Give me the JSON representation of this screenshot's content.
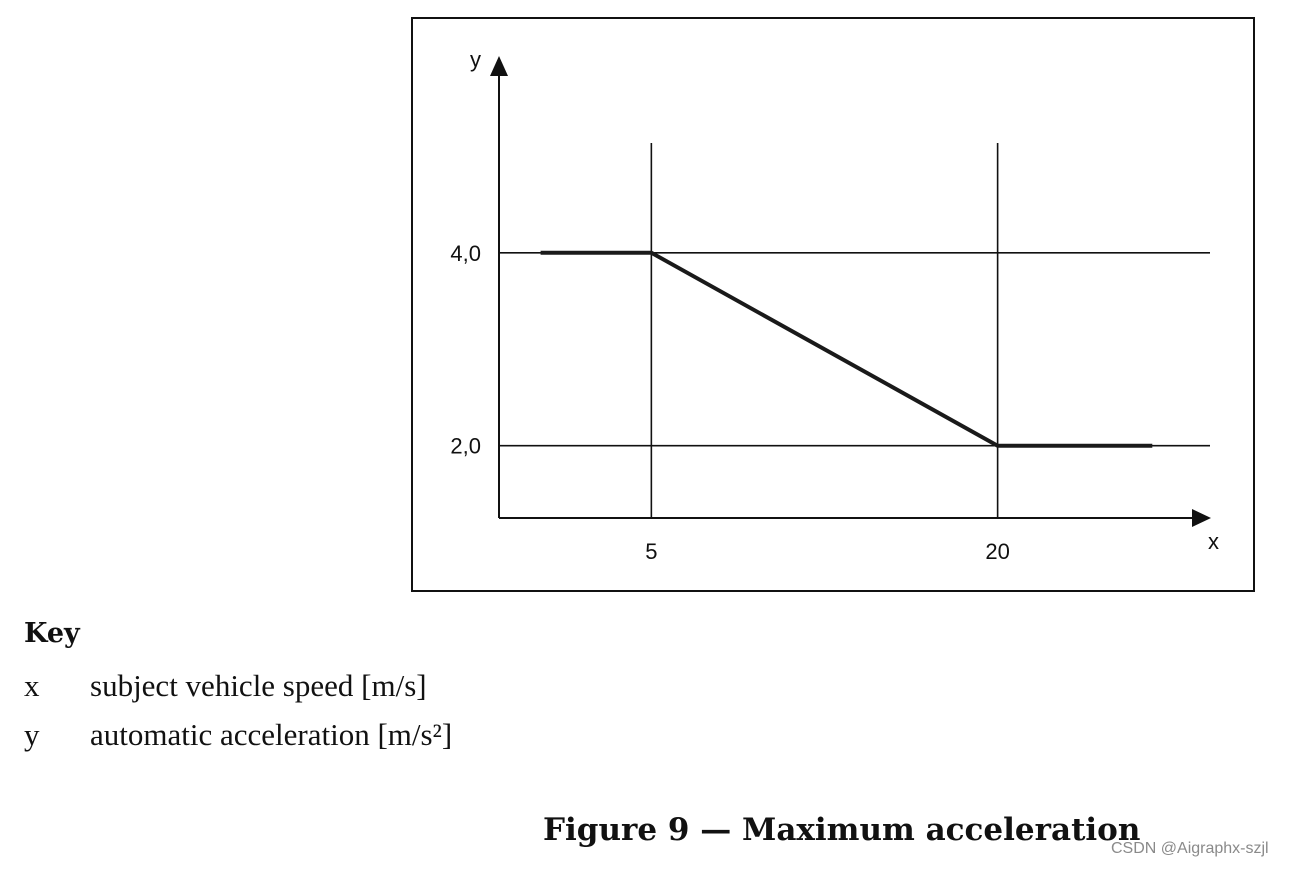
{
  "chart_data": {
    "type": "line",
    "title": "",
    "xlabel": "x",
    "ylabel": "y",
    "x_ticks": [
      {
        "value": 5,
        "label": "5"
      },
      {
        "value": 20,
        "label": "20"
      }
    ],
    "y_ticks": [
      {
        "value": 2.0,
        "label": "2,0"
      },
      {
        "value": 4.0,
        "label": "4,0"
      }
    ],
    "xlim": [
      -1.6,
      29.2
    ],
    "ylim": [
      1.25,
      6.0
    ],
    "grid": true,
    "series": [
      {
        "x": [
          0.2,
          5,
          20,
          26.7
        ],
        "y": [
          4.0,
          4.0,
          2.0,
          2.0
        ]
      }
    ]
  },
  "key": {
    "heading": "Key",
    "entries": [
      {
        "symbol": "x",
        "description": "subject vehicle speed [m/s]"
      },
      {
        "symbol": "y",
        "description": "automatic acceleration [m/s²]"
      }
    ]
  },
  "caption": "Figure 9 — Maximum acceleration",
  "watermark": "CSDN @Aigraphx-szjl"
}
